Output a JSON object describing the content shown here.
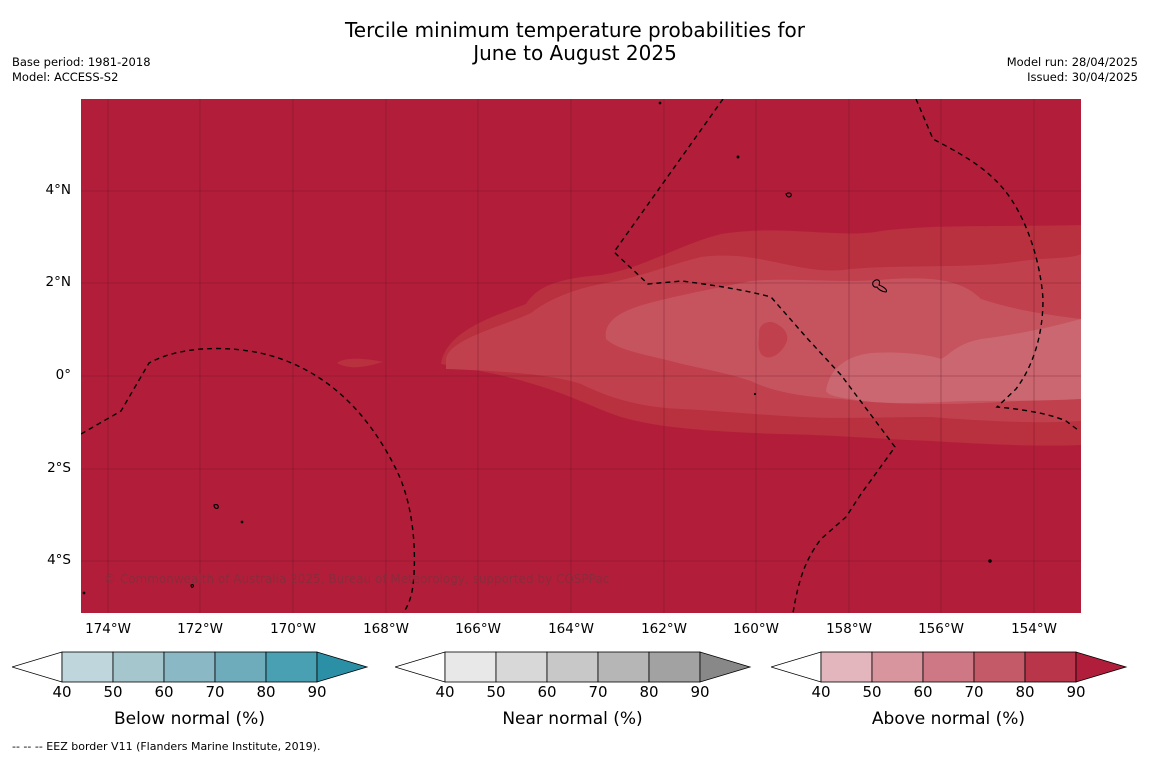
{
  "header": {
    "title_line1": "Tercile minimum temperature probabilities for",
    "title_line2": "June to August 2025",
    "base_period": "Base period: 1981-2018",
    "model": "Model: ACCESS-S2",
    "model_run": "Model run: 28/04/2025",
    "issued": "Issued: 30/04/2025"
  },
  "map": {
    "copyright": "© Commonwealth of Australia 2025, Bureau of Meteorology, supported by COSPPac",
    "lat_labels": [
      "4°N",
      "2°N",
      "0°",
      "2°S",
      "4°S"
    ],
    "lon_labels": [
      "174°W",
      "172°W",
      "170°W",
      "168°W",
      "166°W",
      "164°W",
      "162°W",
      "160°W",
      "158°W",
      "156°W",
      "154°W"
    ],
    "colors": {
      "above_80_90": "#b21e3a",
      "above_70_80": "#b9303f",
      "above_60_70": "#c0404d",
      "above_50_60": "#c6545f",
      "above_40_50": "#cb6770",
      "border": "#000000"
    }
  },
  "colorbars": [
    {
      "name": "below",
      "label": "Below normal (%)",
      "ticks": [
        "40",
        "50",
        "60",
        "70",
        "80",
        "90"
      ],
      "colors": [
        "#bfd6dc",
        "#a6c6cd",
        "#8bb8c5",
        "#6eabbb",
        "#49a0b2",
        "#2b8fa6"
      ]
    },
    {
      "name": "near",
      "label": "Near normal (%)",
      "ticks": [
        "40",
        "50",
        "60",
        "70",
        "80",
        "90"
      ],
      "colors": [
        "#e8e8e8",
        "#d8d8d8",
        "#c8c8c8",
        "#b6b6b6",
        "#a2a2a2",
        "#888888"
      ]
    },
    {
      "name": "above",
      "label": "Above normal (%)",
      "ticks": [
        "40",
        "50",
        "60",
        "70",
        "80",
        "90"
      ],
      "colors": [
        "#e2b6bc",
        "#d8959e",
        "#cd7884",
        "#c45a68",
        "#b93549",
        "#b01e3c"
      ]
    }
  ],
  "footnote": "--  --  -- EEZ border V11 (Flanders Marine Institute, 2019)."
}
